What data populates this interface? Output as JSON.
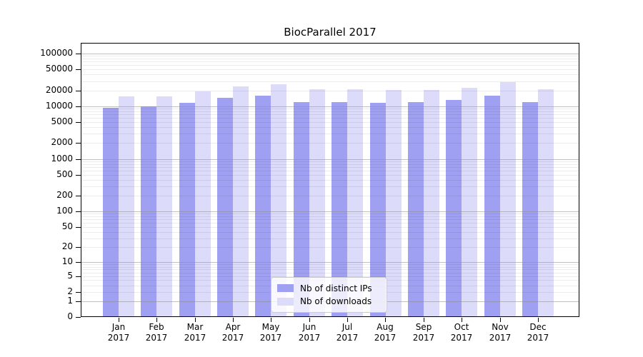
{
  "chart_data": {
    "type": "bar",
    "title": "BiocParallel 2017",
    "x_tick_year": "2017",
    "categories": [
      "Jan",
      "Feb",
      "Mar",
      "Apr",
      "May",
      "Jun",
      "Jul",
      "Aug",
      "Sep",
      "Oct",
      "Nov",
      "Dec"
    ],
    "series": [
      {
        "name": "Nb of distinct IPs",
        "color": "#a0a0f2",
        "values": [
          9400,
          10000,
          11700,
          14300,
          15800,
          12100,
          12000,
          11500,
          11900,
          13200,
          16000,
          12100
        ]
      },
      {
        "name": "Nb of downloads",
        "color": "#dcdcfa",
        "values": [
          15300,
          15500,
          18900,
          23700,
          26400,
          21300,
          21000,
          20300,
          20100,
          22300,
          29200,
          21200
        ]
      }
    ],
    "y_scale": "log10(1+x)",
    "y_ticks": [
      0,
      1,
      2,
      5,
      10,
      20,
      50,
      100,
      200,
      500,
      1000,
      2000,
      5000,
      10000,
      20000,
      50000,
      100000
    ],
    "ylim": [
      0,
      160000
    ],
    "grid": {
      "major_color": "#8c8c8c",
      "minor_color": "#e9e9e9",
      "axisbelow": false
    },
    "legend_position": "lower-center"
  }
}
